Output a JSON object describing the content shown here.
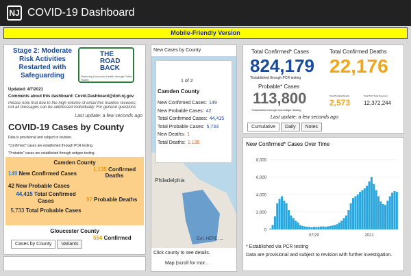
{
  "header": {
    "title": "COVID-19 Dashboard",
    "banner": "Mobile-Friendly Version"
  },
  "left": {
    "stage_title": "Stage 2: Moderate Risk Activities Restarted with Safeguarding",
    "logo_text": "THE ROAD BACK",
    "logo_sub": "Restoring Economic Health through Public Health",
    "updated": "Updated: 4/7/2021",
    "comments": "Comments about this dashboard: Covid.Dashboard@doh.nj.gov",
    "note": "Please note that due to the high volume of email this mailbox receives, not all messages can be addressed individually. For general questions",
    "last_update": "Last update: a few seconds ago",
    "cases_title": "COVID-19 Cases by County",
    "disclaimer": "Data is provisional and subject to revision.",
    "confirmed_note": "\"Confirmed\" cases are established through PCR testing.",
    "probable_note": "\"Probable\" cases are established through antigen testing.",
    "counties": [
      {
        "name": "Camden County",
        "new_confirmed": "149",
        "new_confirmed_label": "New Confirmed Cases",
        "confirmed_deaths": "1,135",
        "confirmed_deaths_label": "Confirmed Deaths",
        "new_probable": "42",
        "new_probable_label": "New Probable Cases",
        "total_confirmed": "44,415",
        "total_confirmed_label": "Total Confirmed Cases",
        "probable_deaths": "97",
        "probable_deaths_label": "Probable Deaths",
        "total_probable": "5,733",
        "total_probable_label": "Total Probable Cases"
      },
      {
        "name": "Gloucester County",
        "confirmed_deaths": "554",
        "confirmed_deaths_label": "Confirmed"
      }
    ],
    "tabs": [
      "Cases by County",
      "Variants"
    ]
  },
  "map": {
    "title": "New Cases by County",
    "pager": "1 of 2",
    "county": "Camden County",
    "rows": [
      {
        "label": "New Confirmed Cases:",
        "value": "149"
      },
      {
        "label": "New Probable Cases:",
        "value": "42"
      },
      {
        "label": "Total Confirmed Cases:",
        "value": "44,415"
      },
      {
        "label": "Total Probable Cases:",
        "value": "5,733"
      },
      {
        "label": "New Deaths:",
        "value": "1"
      },
      {
        "label": "Total Deaths:",
        "value": "1,135"
      }
    ],
    "place": "Philadelphia",
    "attribution": "Esri, HERE, ...",
    "hint": "Click county to see details.",
    "tab": "Map (scroll for mor..."
  },
  "stats": {
    "confirmed_label": "Total Confirmed* Cases",
    "confirmed": "824,179",
    "confirmed_note": "*Established through PCR testing",
    "deaths_label": "Total Confirmed Deaths",
    "deaths": "22,176",
    "probable_label": "Probable* Cases",
    "probable": "113,800",
    "probable_note": "*Established through viral antigen testing",
    "probable_deaths_label": "Total Probable Deaths",
    "probable_deaths": "2,573",
    "pcr_label": "Total PCR Tests Reported",
    "pcr": "12,372,244",
    "last_update": "Last update: a few seconds ago",
    "tabs": [
      "Cumulative",
      "Daily",
      "Notes"
    ]
  },
  "chart_data": {
    "type": "bar",
    "title": "New Confirmed* Cases Over Time",
    "categories": [
      null,
      null,
      null,
      null,
      null,
      null,
      null,
      null,
      null,
      null,
      null,
      null,
      null,
      null,
      null,
      null,
      null,
      null,
      null,
      "07/20",
      null,
      null,
      null,
      null,
      null,
      null,
      null,
      null,
      null,
      null,
      null,
      null,
      null,
      null,
      null,
      null,
      null,
      null,
      null,
      null,
      null,
      null,
      null,
      "2021",
      null,
      null,
      null,
      null,
      null,
      null,
      null,
      null,
      null,
      null,
      null,
      null
    ],
    "values": [
      100,
      500,
      1500,
      3000,
      3500,
      3800,
      3300,
      3000,
      2200,
      1600,
      1300,
      1000,
      800,
      500,
      400,
      350,
      300,
      300,
      250,
      300,
      280,
      300,
      330,
      350,
      320,
      350,
      400,
      450,
      500,
      600,
      800,
      1000,
      1300,
      1600,
      2200,
      3000,
      3600,
      3800,
      4000,
      4300,
      4500,
      4700,
      5000,
      5500,
      6000,
      5200,
      4500,
      3800,
      3200,
      2900,
      2800,
      3300,
      3800,
      4200,
      4400,
      4300
    ],
    "color": "#2aa6df",
    "ylim": [
      0,
      8000
    ],
    "yticks": [
      0,
      {
        "value": 2000,
        "label": "2,000"
      },
      {
        "value": 4000,
        "label": "4,000"
      },
      {
        "value": 6000,
        "label": "6,000"
      },
      {
        "value": 8000,
        "label": "8,000"
      }
    ],
    "grid": true,
    "footnote": "* Established via PCR testing",
    "disclaimer": "Data are provisional and subject to revision with further investigation."
  }
}
